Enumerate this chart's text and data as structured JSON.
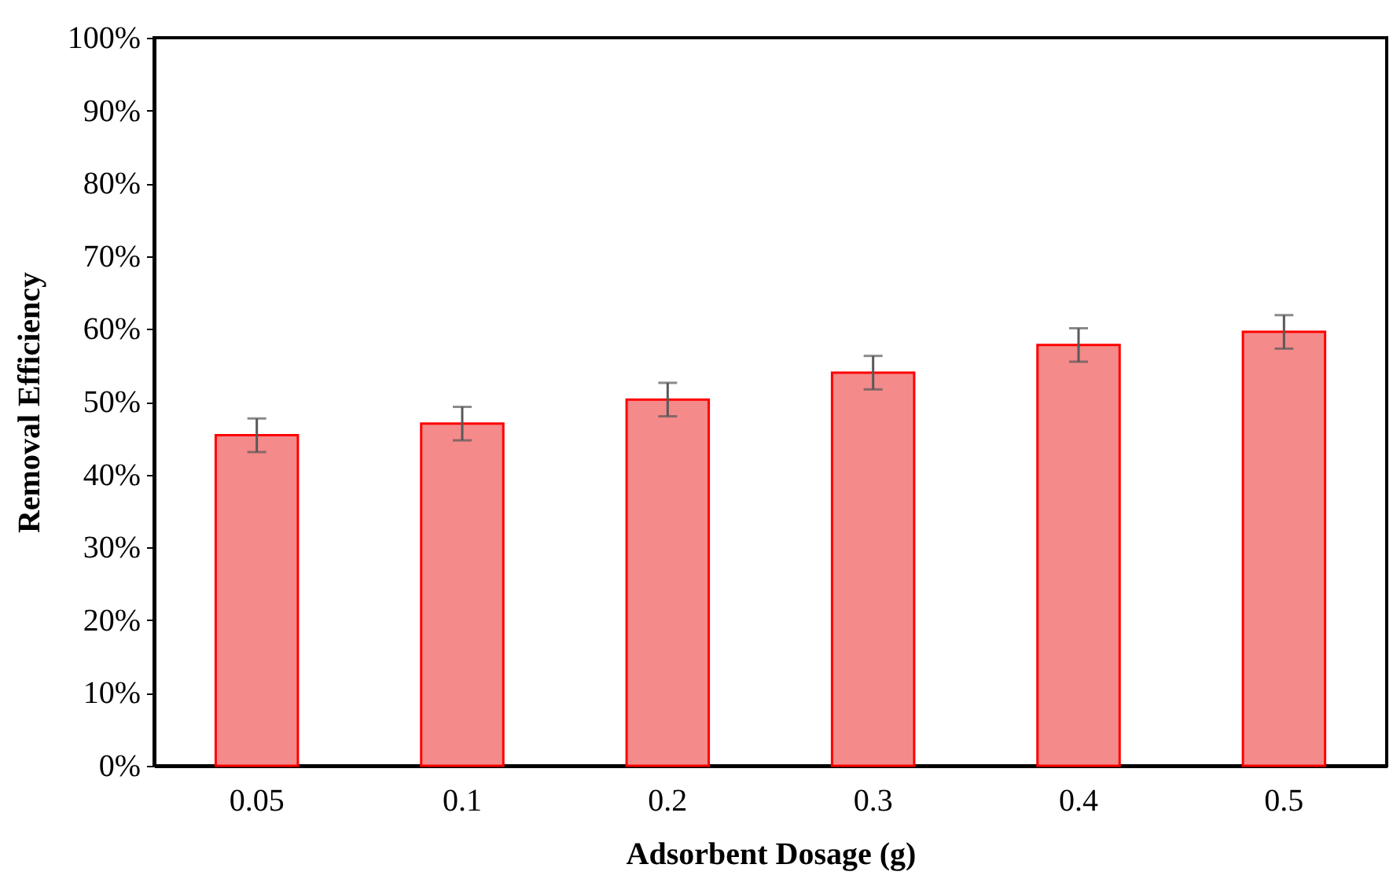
{
  "chart_data": {
    "type": "bar",
    "xlabel": "Adsorbent Dosage (g)",
    "ylabel": "Removal Efficiency",
    "categories": [
      "0.05",
      "0.1",
      "0.2",
      "0.3",
      "0.4",
      "0.5"
    ],
    "values": [
      45.4,
      47.0,
      50.3,
      54.0,
      57.8,
      59.6
    ],
    "errors": [
      2.3,
      2.3,
      2.3,
      2.3,
      2.3,
      2.3
    ],
    "color": "#f48a8a",
    "ylim": [
      0,
      100
    ],
    "yticks": [
      {
        "value": 0,
        "label": "0%"
      },
      {
        "value": 10,
        "label": "10%"
      },
      {
        "value": 20,
        "label": "20%"
      },
      {
        "value": 30,
        "label": "30%"
      },
      {
        "value": 40,
        "label": "40%"
      },
      {
        "value": 50,
        "label": "50%"
      },
      {
        "value": 60,
        "label": "60%"
      },
      {
        "value": 70,
        "label": "70%"
      },
      {
        "value": 80,
        "label": "80%"
      },
      {
        "value": 90,
        "label": "90%"
      },
      {
        "value": 100,
        "label": "100%"
      }
    ],
    "grid": false
  }
}
